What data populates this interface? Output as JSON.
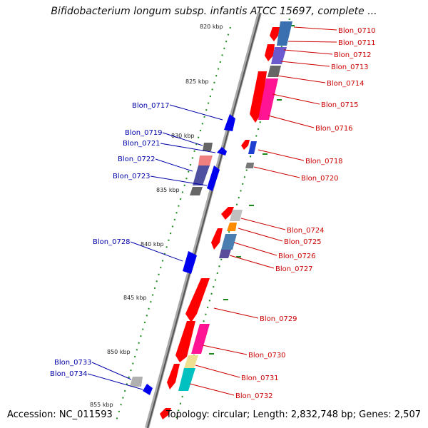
{
  "title": "Bifidobacterium longum subsp. infantis ATCC 15697, complete ...",
  "footer": {
    "accession": "Accession: NC_011593",
    "topology": "Topology: circular; Length: 2,832,748 bp; Genes: 2,507"
  },
  "colors": {
    "backbone": "#777777",
    "ticks": "#2e8b2e",
    "forward_label": "#cc0000",
    "reverse_label": "#0000aa"
  },
  "scale": {
    "unit": "kbp",
    "labels": [
      "820 kbp",
      "825 kbp",
      "830 kbp",
      "835 kbp",
      "840 kbp",
      "845 kbp",
      "850 kbp",
      "855 kbp"
    ]
  },
  "genes": {
    "right": [
      {
        "label": "Blon_0710",
        "color": "#3a6fb0"
      },
      {
        "label": "Blon_0711",
        "color": "#4a80c0"
      },
      {
        "label": "Blon_0712",
        "color": "#6a5acd"
      },
      {
        "label": "Blon_0713",
        "color": "#666666"
      },
      {
        "label": "Blon_0714",
        "color": "#ff1493"
      },
      {
        "label": "Blon_0715",
        "color": "#ff1493"
      },
      {
        "label": "Blon_0716",
        "color": "#ff2d8a"
      },
      {
        "label": "Blon_0718",
        "color": "#1f3fd0"
      },
      {
        "label": "Blon_0720",
        "color": "#777777"
      },
      {
        "label": "Blon_0724",
        "color": "#c0c0c0"
      },
      {
        "label": "Blon_0725",
        "color": "#20a0c0"
      },
      {
        "label": "Blon_0726",
        "color": "#4a7db0"
      },
      {
        "label": "Blon_0727",
        "color": "#5a4a9a"
      },
      {
        "label": "Blon_0729",
        "color": "#ff0000"
      },
      {
        "label": "Blon_0730",
        "color": "#ff1493"
      },
      {
        "label": "Blon_0731",
        "color": "#eee090"
      },
      {
        "label": "Blon_0732",
        "color": "#00c0c0"
      }
    ],
    "left": [
      {
        "label": "Blon_0717",
        "color": "#0000ee"
      },
      {
        "label": "Blon_0719",
        "color": "#666666"
      },
      {
        "label": "Blon_0721",
        "color": "#0000ee"
      },
      {
        "label": "Blon_0722",
        "color": "#5050a0"
      },
      {
        "label": "Blon_0723",
        "color": "#0000ee"
      },
      {
        "label": "Blon_0728",
        "color": "#0000ee"
      },
      {
        "label": "Blon_0733",
        "color": "#b0b0b0"
      },
      {
        "label": "Blon_0734",
        "color": "#0000ee"
      }
    ]
  }
}
